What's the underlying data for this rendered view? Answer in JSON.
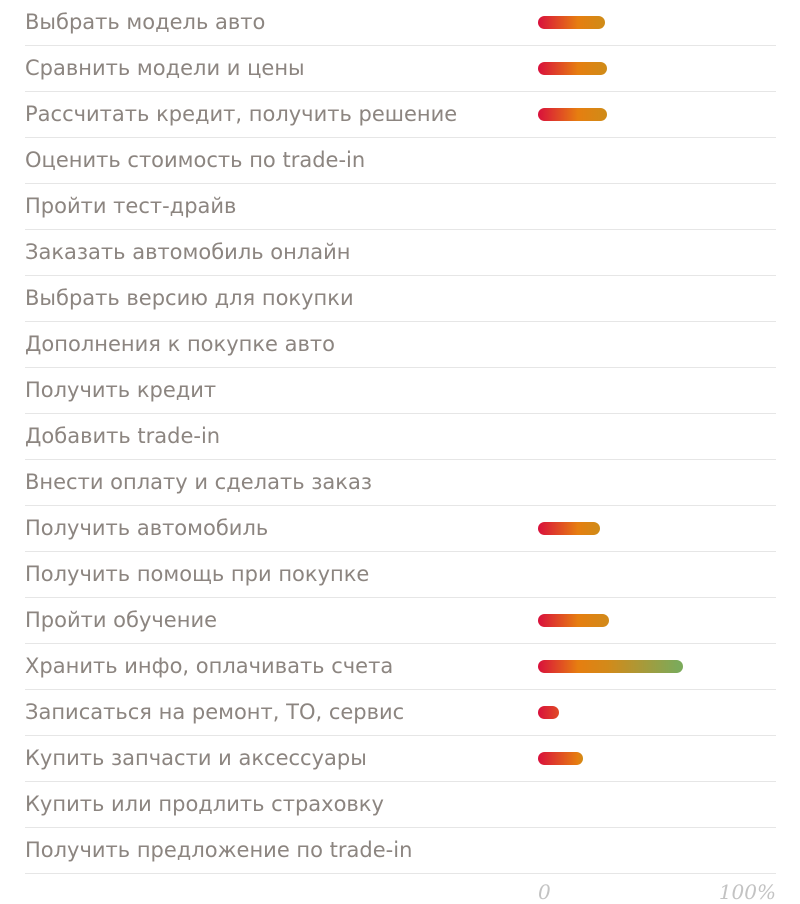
{
  "colors": {
    "bar_start": "#d9103c",
    "bar_mid": "#e67e10",
    "bar_green": "#7caa5a",
    "label": "#8c8580",
    "divider": "#e6e6e6",
    "tick": "#c3c3c3"
  },
  "chart_data": {
    "type": "bar",
    "orientation": "horizontal",
    "xlim": [
      0,
      100
    ],
    "x_tick_labels": [
      "0",
      "100%"
    ],
    "grid": false,
    "categories": [
      "Выбрать модель авто",
      "Сравнить модели и цены",
      "Рассчитать кредит, получить решение",
      "Оценить стоимость по trade-in",
      "Пройти тест-драйв",
      "Заказать автомобиль онлайн",
      "Выбрать версию для покупки",
      "Дополнения к покупке авто",
      "Получить кредит",
      "Добавить trade-in",
      "Внести оплату и сделать заказ",
      "Получить автомобиль",
      "Получить помощь при покупке",
      "Пройти обучение",
      "Хранить инфо, оплачивать счета",
      "Записаться на ремонт, ТО, сервис",
      "Купить запчасти и аксессуары",
      "Купить или продлить страховку",
      "Получить предложение по trade-in"
    ],
    "values": [
      28,
      29,
      29,
      0,
      0,
      0,
      0,
      0,
      0,
      0,
      0,
      26,
      0,
      30,
      61,
      9,
      19,
      0,
      0
    ]
  }
}
